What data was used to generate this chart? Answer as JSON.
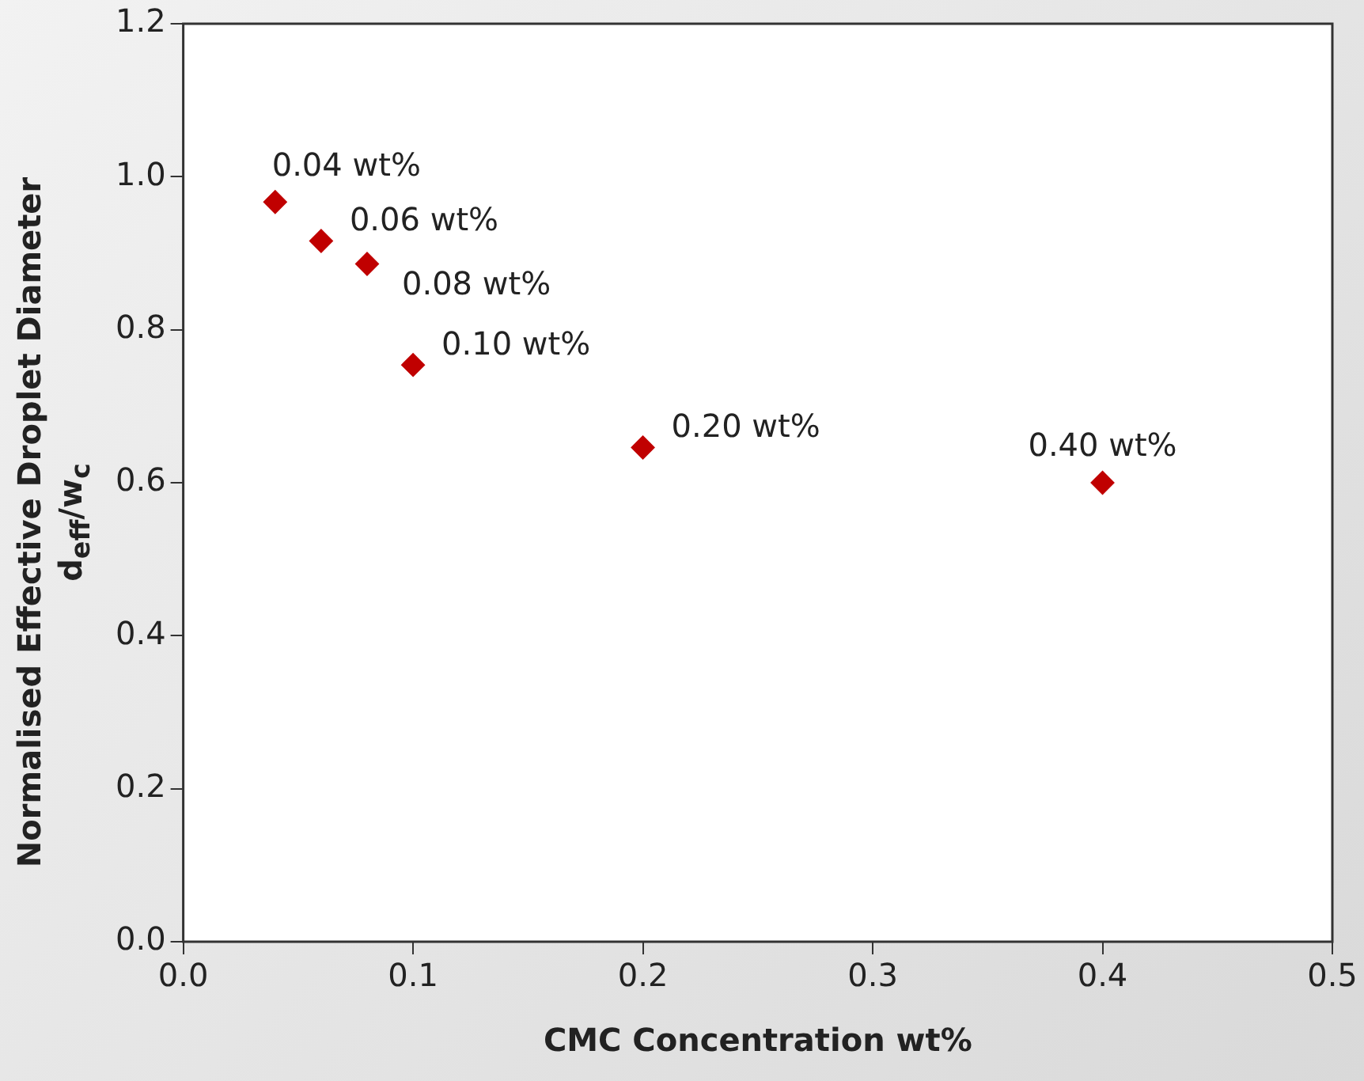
{
  "chart_data": {
    "type": "scatter",
    "xlabel": "CMC Concentration wt%",
    "ylabel": "Normalised Effective Droplet Diameter\nd$_{eff}$/w$_{c}$",
    "x": [
      0.04,
      0.06,
      0.08,
      0.1,
      0.2,
      0.4
    ],
    "series": [
      {
        "color": "#c00000",
        "values": [
          0.967,
          0.916,
          0.886,
          0.754,
          0.646,
          0.6
        ]
      }
    ],
    "marker": "diamond",
    "grid": false,
    "legend": false,
    "xlim": [
      0,
      0.5
    ],
    "xticks": [
      {
        "value": 0,
        "label": "0.0"
      },
      0.1,
      0.2,
      0.3,
      0.4,
      0.5
    ],
    "ylim": [
      0,
      1.2
    ],
    "yticks": [
      {
        "value": 0,
        "label": "0.0"
      },
      0.2,
      0.4,
      0.6,
      0.8,
      {
        "value": 1,
        "label": "1.0"
      },
      1.2
    ],
    "annotations": [
      {
        "text": "0.04 wt%",
        "x": 0.04,
        "y": 0.967
      },
      {
        "text": "0.06 wt%",
        "x": 0.06,
        "y": 0.916
      },
      {
        "text": "0.08 wt%",
        "x": 0.08,
        "y": 0.886
      },
      {
        "text": "0.10 wt%",
        "x": 0.1,
        "y": 0.754
      },
      {
        "text": "0.20 wt%",
        "x": 0.2,
        "y": 0.646
      },
      {
        "text": "0.40 wt%",
        "x": 0.4,
        "y": 0.6
      }
    ]
  }
}
